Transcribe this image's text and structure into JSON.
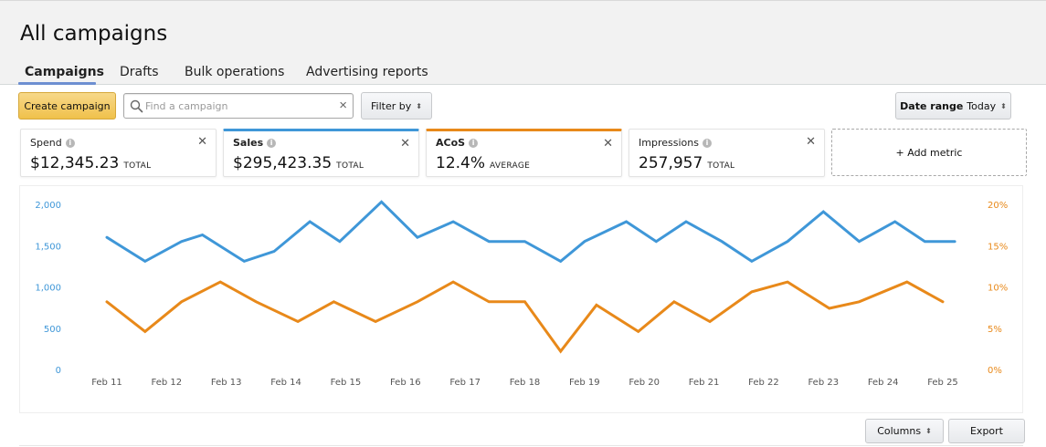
{
  "page": {
    "title": "All campaigns"
  },
  "tabs": [
    {
      "label": "Campaigns",
      "active": true
    },
    {
      "label": "Drafts",
      "active": false
    },
    {
      "label": "Bulk operations",
      "active": false
    },
    {
      "label": "Advertising reports",
      "active": false
    }
  ],
  "toolbar": {
    "create_label": "Create campaign",
    "search_placeholder": "Find a campaign",
    "search_value": "",
    "filter_label": "Filter by",
    "date_label": "Date range",
    "date_value": "Today"
  },
  "metrics": [
    {
      "name": "Spend",
      "value": "$12,345.23",
      "type": "TOTAL",
      "color": ""
    },
    {
      "name": "Sales",
      "value": "$295,423.35",
      "type": "TOTAL",
      "color": "#3f97d8"
    },
    {
      "name": "ACoS",
      "value": "12.4%",
      "type": "AVERAGE",
      "color": "#e8891a"
    },
    {
      "name": "Impressions",
      "value": "257,957",
      "type": "TOTAL",
      "color": ""
    }
  ],
  "add_metric_label": "+ Add metric",
  "icons": {
    "search": "search-icon",
    "clear": "close-icon",
    "info": "info-icon",
    "sort": "sort-arrows-icon"
  },
  "footer": {
    "columns_label": "Columns",
    "export_label": "Export"
  },
  "chart_data": {
    "type": "line",
    "x_labels": [
      "Feb 11",
      "Feb 12",
      "Feb 13",
      "Feb 14",
      "Feb 15",
      "Feb 16",
      "Feb 17",
      "Feb 18",
      "Feb 19",
      "Feb 20",
      "Feb 21",
      "Feb 22",
      "Feb 23",
      "Feb 24",
      "Feb 25"
    ],
    "left_axis": {
      "ticks": [
        "0",
        "500",
        "1,000",
        "1,500",
        "2,000"
      ],
      "min": 0,
      "max": 2000,
      "color": "#3f97d8"
    },
    "right_axis": {
      "ticks": [
        "0%",
        "5%",
        "10%",
        "15%",
        "20%"
      ],
      "min": 0,
      "max": 20,
      "color": "#e8891a"
    },
    "grid": false,
    "series": [
      {
        "name": "Sales",
        "axis": "left",
        "color": "#3f97d8",
        "x": [
          0,
          0.64,
          1.25,
          1.6,
          2.3,
          2.8,
          3.4,
          3.9,
          4.6,
          5.2,
          5.8,
          6.4,
          7.0,
          7.6,
          8.0,
          8.7,
          9.2,
          9.7,
          10.3,
          10.8,
          11.4,
          12.0,
          12.6,
          13.2,
          13.7,
          14.2
        ],
        "y": [
          1600,
          1310,
          1550,
          1630,
          1310,
          1430,
          1790,
          1550,
          2030,
          1600,
          1790,
          1550,
          1550,
          1310,
          1550,
          1790,
          1550,
          1790,
          1550,
          1310,
          1550,
          1910,
          1550,
          1790,
          1550,
          1550
        ]
      },
      {
        "name": "ACoS",
        "axis": "right",
        "color": "#e8891a",
        "x": [
          0,
          0.64,
          1.25,
          1.9,
          2.5,
          3.2,
          3.8,
          4.5,
          5.2,
          5.8,
          6.4,
          7.0,
          7.6,
          8.2,
          8.9,
          9.5,
          10.1,
          10.8,
          11.4,
          12.1,
          12.6,
          13.4,
          14.0
        ],
        "y": [
          8.2,
          4.6,
          8.2,
          10.6,
          8.2,
          5.8,
          8.2,
          5.8,
          8.2,
          10.6,
          8.2,
          8.2,
          2.2,
          7.8,
          4.6,
          8.2,
          5.8,
          9.4,
          10.6,
          7.4,
          8.2,
          10.6,
          8.2
        ]
      }
    ]
  }
}
